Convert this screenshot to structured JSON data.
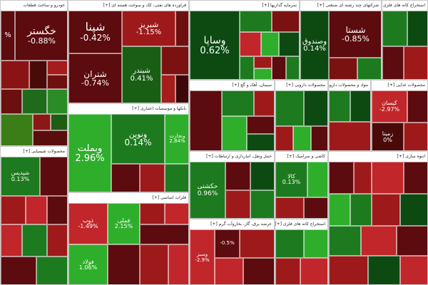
{
  "colors": {
    "deep_red": "#5c0b0e",
    "red": "#9e1a1a",
    "bright_red": "#c0262a",
    "dark_green": "#0d4a12",
    "green": "#1d7a1f",
    "bright_green": "#2fae2c"
  },
  "sectors": [
    {
      "key": "s1",
      "title": "خودرو و ساخت قطعات"
    },
    {
      "key": "s2",
      "title": "فراورده های نفتی، کک و سوخت هسته ای [+]"
    },
    {
      "key": "s3",
      "title": "سرمایه گذاریها [+]"
    },
    {
      "key": "s4",
      "title": "شرکتهای چند رشته ای صنعتی [+]"
    },
    {
      "key": "s5",
      "title": "استخراج کانه های فلزی"
    },
    {
      "key": "s6",
      "title": "بانکها و موسسات اعتباری [+]"
    },
    {
      "key": "s7",
      "title": "سیمان، آهک و گچ [+]"
    },
    {
      "key": "s8",
      "title": "محصولات دارویی [+]"
    },
    {
      "key": "s9",
      "title": "مواد و محصولات دارویی [+]"
    },
    {
      "key": "s10",
      "title": "محصولات غذایی [+]"
    },
    {
      "key": "s11",
      "title": "محصولات شیمیایی [+]"
    },
    {
      "key": "s12",
      "title": "فلزات اساسی [+]"
    },
    {
      "key": "s13",
      "title": "حمل ونقل، انبارداری و ارتباطات [+]"
    },
    {
      "key": "s14",
      "title": "کاشی و سرامیک [+]"
    },
    {
      "key": "s15",
      "title": "عرضه برق، گاز، بخاروآب گرم [+]"
    },
    {
      "key": "s16",
      "title": "استخراج کانه های فلزی [+]"
    },
    {
      "key": "s17",
      "title": "انبوه سازی [+]"
    }
  ],
  "tiles": [
    {
      "key": "khgostar",
      "name": "خگستر",
      "pct": "-0.88%"
    },
    {
      "key": "left_pct",
      "name": "",
      "pct": "%"
    },
    {
      "key": "shepna",
      "name": "شپنا",
      "pct": "-0.42%"
    },
    {
      "key": "shabriz",
      "name": "شبریز",
      "pct": "-1.15%"
    },
    {
      "key": "shetran",
      "name": "شتران",
      "pct": "-0.74%"
    },
    {
      "key": "shebandar",
      "name": "شبندر",
      "pct": "0.41%"
    },
    {
      "key": "vasapa",
      "name": "وساپا",
      "pct": "0.62%"
    },
    {
      "key": "shasta",
      "name": "شستا",
      "pct": "-0.85%"
    },
    {
      "key": "vasandoq",
      "name": "وصندوق",
      "pct": "0.14%"
    },
    {
      "key": "vabemellat",
      "name": "وبملت",
      "pct": "2.96%"
    },
    {
      "key": "vanovin",
      "name": "ونوین",
      "pct": "0.14%"
    },
    {
      "key": "vatejarat",
      "name": "وتجارت",
      "pct": "2.84%"
    },
    {
      "key": "shepdis",
      "name": "شپدیس",
      "pct": "0.13%"
    },
    {
      "key": "kisan",
      "name": "کیسان",
      "pct": "-2.97%"
    },
    {
      "key": "zamina",
      "name": "زمینا",
      "pct": "0%"
    },
    {
      "key": "hekshti",
      "name": "حکشتی",
      "pct": "0.96%"
    },
    {
      "key": "kala",
      "name": "کالا",
      "pct": "0.13%"
    },
    {
      "key": "fameli",
      "name": "فملی",
      "pct": "2.15%"
    },
    {
      "key": "zob",
      "name": "ذوب",
      "pct": "-1.49%"
    },
    {
      "key": "foulad",
      "name": "فولاد",
      "pct": "1.06%"
    },
    {
      "key": "vesabz",
      "name": "وسبز",
      "pct": "-2.9%"
    },
    {
      "key": "misc1",
      "name": "",
      "pct": "-0.5%"
    }
  ]
}
